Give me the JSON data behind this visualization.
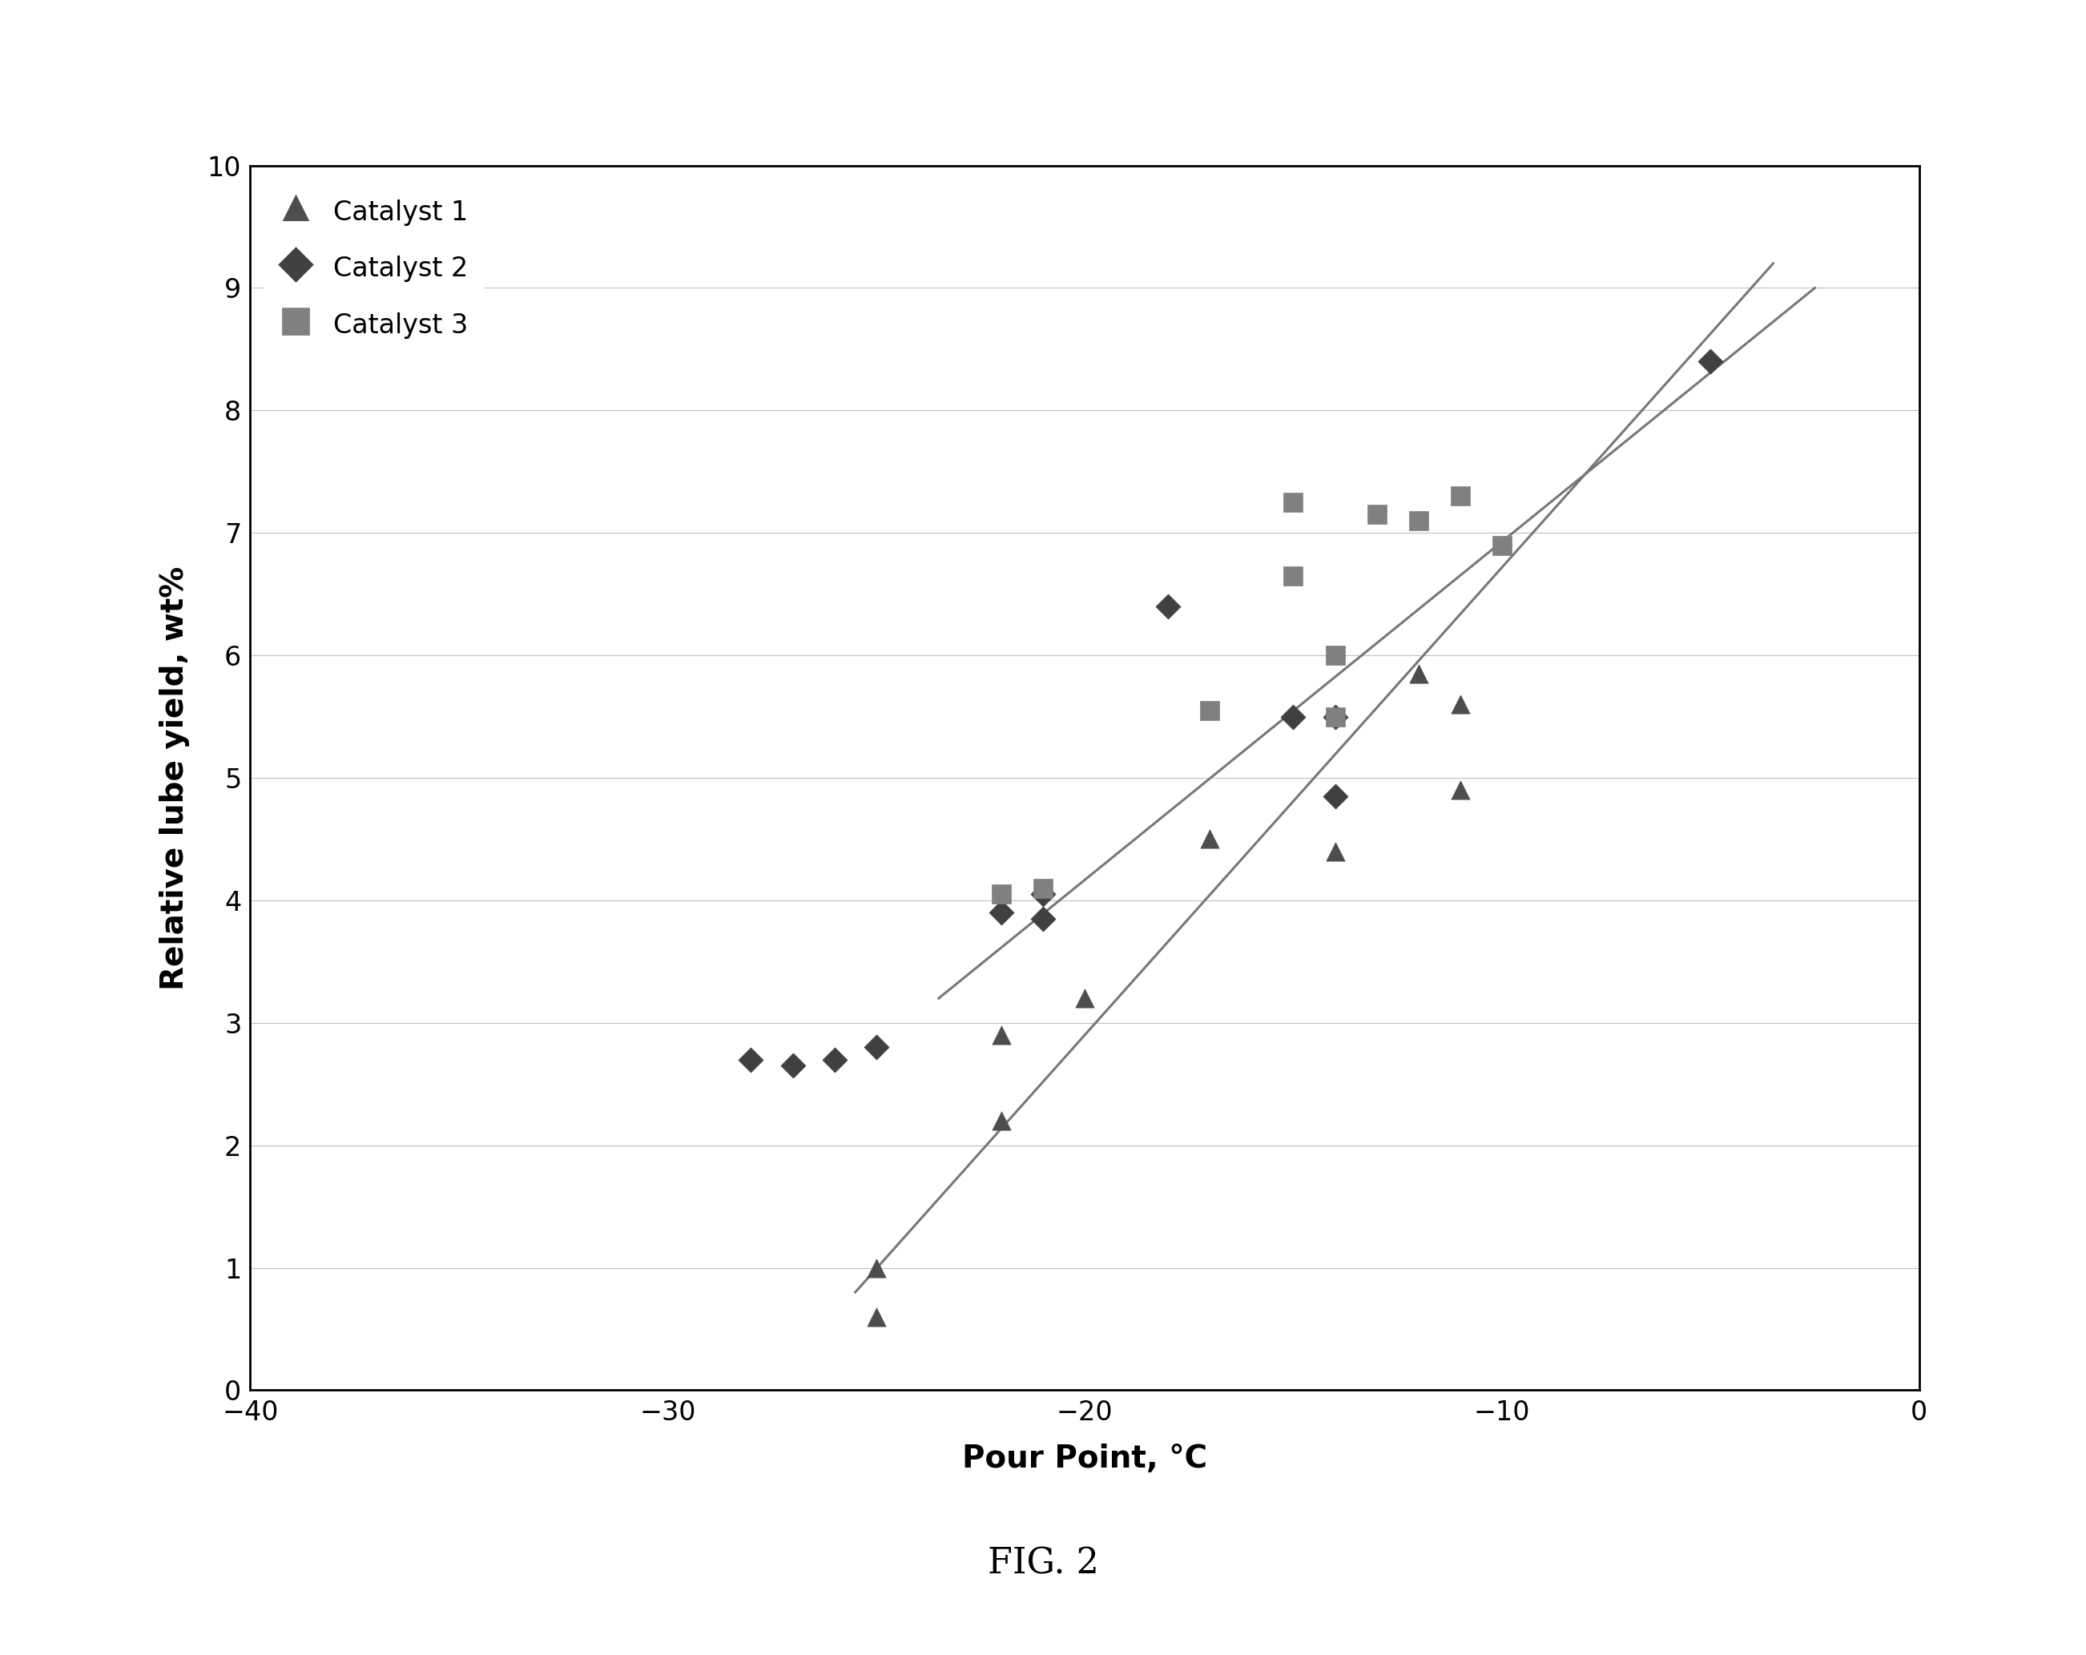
{
  "catalyst1_x": [
    -25,
    -25,
    -22,
    -22,
    -20,
    -17,
    -14,
    -12,
    -11,
    -11
  ],
  "catalyst1_y": [
    1.0,
    0.6,
    2.2,
    2.9,
    3.2,
    4.5,
    4.4,
    5.85,
    4.9,
    5.6
  ],
  "catalyst2_x": [
    -28,
    -27,
    -26,
    -25,
    -22,
    -21,
    -21,
    -18,
    -15,
    -14,
    -14,
    -5
  ],
  "catalyst2_y": [
    2.7,
    2.65,
    2.7,
    2.8,
    3.9,
    4.05,
    3.85,
    6.4,
    5.5,
    5.5,
    4.85,
    8.4
  ],
  "catalyst3_x": [
    -22,
    -21,
    -17,
    -15,
    -15,
    -14,
    -14,
    -13,
    -12,
    -11,
    -10
  ],
  "catalyst3_y": [
    4.05,
    4.1,
    5.55,
    6.65,
    7.25,
    6.0,
    5.5,
    7.15,
    7.1,
    7.3,
    6.9
  ],
  "line1_x": [
    -25.5,
    -3.5
  ],
  "line1_y": [
    0.8,
    9.2
  ],
  "line2_x": [
    -23.5,
    -2.5
  ],
  "line2_y": [
    3.2,
    9.0
  ],
  "xlabel": "Pour Point, °C",
  "ylabel": "Relative lube yield, wt%",
  "xlim": [
    -40,
    0
  ],
  "ylim": [
    0,
    10
  ],
  "xticks": [
    -40,
    -30,
    -20,
    -10,
    0
  ],
  "yticks": [
    0,
    1,
    2,
    3,
    4,
    5,
    6,
    7,
    8,
    9,
    10
  ],
  "legend_labels": [
    "Catalyst 1",
    "Catalyst 2",
    "Catalyst 3"
  ],
  "marker_color1": "#4d4d4d",
  "marker_color2": "#404040",
  "marker_color3": "#808080",
  "line_color": "#777777",
  "fig_caption": "FIG. 2",
  "background_color": "#ffffff",
  "border_color": "#000000"
}
